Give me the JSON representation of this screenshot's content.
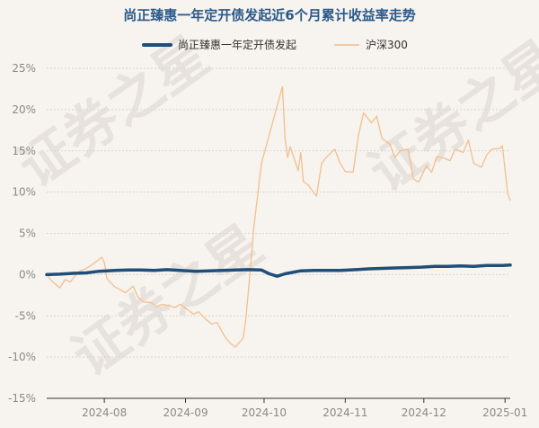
{
  "chart_data": {
    "type": "line",
    "title": "尚正臻惠一年定开债发起近6个月累计收益率走势",
    "watermark": "证券之星",
    "xlabel": "",
    "ylabel": "",
    "x_ticks": [
      "2024-08",
      "2024-09",
      "2024-10",
      "2024-11",
      "2024-12",
      "2025-01"
    ],
    "y_ticks": [
      "25%",
      "20%",
      "15%",
      "10%",
      "5%",
      "0%",
      "-5%",
      "-10%",
      "-15%"
    ],
    "ylim": [
      -15,
      25
    ],
    "grid": true,
    "legend_position": "top-center",
    "series": [
      {
        "name": "尚正臻惠一年定开债发起",
        "color": "#1f4e79",
        "points": [
          [
            "2024-07-10",
            0
          ],
          [
            "2024-07-15",
            0.05
          ],
          [
            "2024-07-20",
            0.15
          ],
          [
            "2024-07-25",
            0.2
          ],
          [
            "2024-07-30",
            0.4
          ],
          [
            "2024-08-05",
            0.5
          ],
          [
            "2024-08-10",
            0.55
          ],
          [
            "2024-08-15",
            0.55
          ],
          [
            "2024-08-20",
            0.5
          ],
          [
            "2024-08-25",
            0.6
          ],
          [
            "2024-08-30",
            0.5
          ],
          [
            "2024-09-05",
            0.4
          ],
          [
            "2024-09-10",
            0.45
          ],
          [
            "2024-09-15",
            0.5
          ],
          [
            "2024-09-20",
            0.55
          ],
          [
            "2024-09-25",
            0.6
          ],
          [
            "2024-09-30",
            0.55
          ],
          [
            "2024-10-03",
            0.1
          ],
          [
            "2024-10-06",
            -0.2
          ],
          [
            "2024-10-09",
            0.1
          ],
          [
            "2024-10-15",
            0.45
          ],
          [
            "2024-10-20",
            0.5
          ],
          [
            "2024-10-25",
            0.5
          ],
          [
            "2024-10-30",
            0.5
          ],
          [
            "2024-11-05",
            0.6
          ],
          [
            "2024-11-10",
            0.7
          ],
          [
            "2024-11-15",
            0.75
          ],
          [
            "2024-11-20",
            0.8
          ],
          [
            "2024-11-25",
            0.85
          ],
          [
            "2024-11-30",
            0.9
          ],
          [
            "2024-12-05",
            1.0
          ],
          [
            "2024-12-10",
            1.0
          ],
          [
            "2024-12-15",
            1.05
          ],
          [
            "2024-12-20",
            1.0
          ],
          [
            "2024-12-25",
            1.1
          ],
          [
            "2024-12-31",
            1.1
          ],
          [
            "2025-01-03",
            1.15
          ]
        ]
      },
      {
        "name": "沪深300",
        "color": "#f2c08d",
        "points": [
          [
            "2024-07-10",
            0
          ],
          [
            "2024-07-12",
            -0.8
          ],
          [
            "2024-07-15",
            -1.6
          ],
          [
            "2024-07-17",
            -0.6
          ],
          [
            "2024-07-19",
            -0.9
          ],
          [
            "2024-07-22",
            0.3
          ],
          [
            "2024-07-24",
            0.6
          ],
          [
            "2024-07-26",
            0.9
          ],
          [
            "2024-07-29",
            1.6
          ],
          [
            "2024-07-31",
            2.1
          ],
          [
            "2024-08-01",
            1.5
          ],
          [
            "2024-08-02",
            -0.5
          ],
          [
            "2024-08-05",
            -1.5
          ],
          [
            "2024-08-07",
            -1.8
          ],
          [
            "2024-08-09",
            -2.2
          ],
          [
            "2024-08-12",
            -1.4
          ],
          [
            "2024-08-14",
            -2.8
          ],
          [
            "2024-08-16",
            -3.3
          ],
          [
            "2024-08-19",
            -3.4
          ],
          [
            "2024-08-21",
            -3.9
          ],
          [
            "2024-08-23",
            -3.6
          ],
          [
            "2024-08-26",
            -3.8
          ],
          [
            "2024-08-28",
            -4.0
          ],
          [
            "2024-08-30",
            -3.6
          ],
          [
            "2024-09-02",
            -4.3
          ],
          [
            "2024-09-04",
            -4.8
          ],
          [
            "2024-09-06",
            -4.5
          ],
          [
            "2024-09-09",
            -5.5
          ],
          [
            "2024-09-11",
            -6.0
          ],
          [
            "2024-09-13",
            -5.8
          ],
          [
            "2024-09-16",
            -7.5
          ],
          [
            "2024-09-18",
            -8.3
          ],
          [
            "2024-09-20",
            -8.8
          ],
          [
            "2024-09-23",
            -7.7
          ],
          [
            "2024-09-24",
            -5.5
          ],
          [
            "2024-09-25",
            -2.0
          ],
          [
            "2024-09-26",
            1.5
          ],
          [
            "2024-09-27",
            5.5
          ],
          [
            "2024-09-30",
            13.5
          ],
          [
            "2024-10-08",
            22.8
          ],
          [
            "2024-10-09",
            16.5
          ],
          [
            "2024-10-10",
            14.2
          ],
          [
            "2024-10-11",
            15.5
          ],
          [
            "2024-10-14",
            12.6
          ],
          [
            "2024-10-15",
            14.8
          ],
          [
            "2024-10-16",
            11.3
          ],
          [
            "2024-10-18",
            10.8
          ],
          [
            "2024-10-21",
            9.5
          ],
          [
            "2024-10-23",
            13.5
          ],
          [
            "2024-10-25",
            14.3
          ],
          [
            "2024-10-28",
            15.2
          ],
          [
            "2024-10-30",
            13.5
          ],
          [
            "2024-11-01",
            12.5
          ],
          [
            "2024-11-04",
            12.4
          ],
          [
            "2024-11-06",
            16.8
          ],
          [
            "2024-11-08",
            19.6
          ],
          [
            "2024-11-11",
            18.4
          ],
          [
            "2024-11-13",
            19.2
          ],
          [
            "2024-11-15",
            16.5
          ],
          [
            "2024-11-18",
            15.8
          ],
          [
            "2024-11-20",
            14.2
          ],
          [
            "2024-11-22",
            15.0
          ],
          [
            "2024-11-25",
            15.2
          ],
          [
            "2024-11-27",
            11.6
          ],
          [
            "2024-11-29",
            11.2
          ],
          [
            "2024-12-02",
            13.2
          ],
          [
            "2024-12-04",
            12.4
          ],
          [
            "2024-12-06",
            14.3
          ],
          [
            "2024-12-09",
            14.1
          ],
          [
            "2024-12-11",
            13.8
          ],
          [
            "2024-12-13",
            15.2
          ],
          [
            "2024-12-16",
            14.8
          ],
          [
            "2024-12-18",
            16.3
          ],
          [
            "2024-12-20",
            13.5
          ],
          [
            "2024-12-23",
            13.0
          ],
          [
            "2024-12-25",
            14.5
          ],
          [
            "2024-12-27",
            15.2
          ],
          [
            "2024-12-30",
            15.3
          ],
          [
            "2024-12-31",
            15.6
          ],
          [
            "2025-01-02",
            9.8
          ],
          [
            "2025-01-03",
            9.0
          ]
        ]
      }
    ]
  }
}
